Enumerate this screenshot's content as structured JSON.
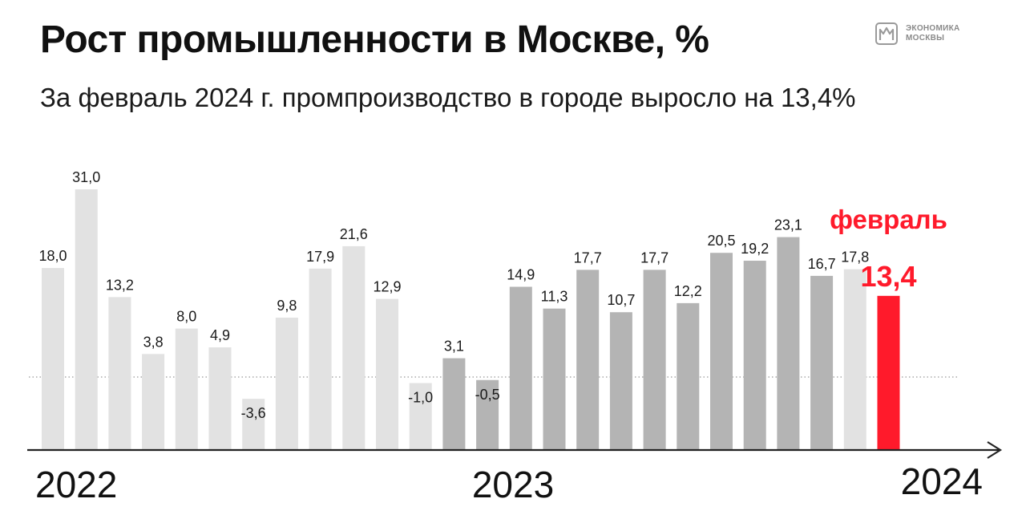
{
  "title": "Рост промышленности в Москве, %",
  "subtitle": "За февраль 2024 г. промпроизводство в городе выросло на 13,4%",
  "logo": {
    "line1": "ЭКОНОМИКА",
    "line2": "МОСКВЫ",
    "icon": "building-icon"
  },
  "colors": {
    "bar_2022": "#e2e2e2",
    "bar_2023": "#b4b4b4",
    "bar_2024": "#e2e2e2",
    "highlight": "#ff1a2b",
    "axis": "#222222",
    "zero_line": "#999999"
  },
  "chart_data": {
    "type": "bar",
    "title": "Рост промышленности в Москве, %",
    "subtitle": "За февраль 2024 г. промпроизводство в городе выросло на 13,4%",
    "xlabel": "",
    "ylabel": "",
    "grid": false,
    "ylim": [
      -6,
      34
    ],
    "values": [
      18.0,
      31.0,
      13.2,
      3.8,
      8.0,
      4.9,
      -3.6,
      9.8,
      17.9,
      21.6,
      12.9,
      -1.0,
      3.1,
      -0.5,
      14.9,
      11.3,
      17.7,
      10.7,
      17.7,
      12.2,
      20.5,
      19.2,
      23.1,
      16.7,
      17.8,
      13.4
    ],
    "labels": [
      "18,0",
      "31,0",
      "13,2",
      "3,8",
      "8,0",
      "4,9",
      "-3,6",
      "9,8",
      "17,9",
      "21,6",
      "12,9",
      "-1,0",
      "3,1",
      "-0,5",
      "14,9",
      "11,3",
      "17,7",
      "10,7",
      "17,7",
      "12,2",
      "20,5",
      "19,2",
      "23,1",
      "16,7",
      "17,8",
      "13,4"
    ],
    "years": [
      "2022",
      "2022",
      "2022",
      "2022",
      "2022",
      "2022",
      "2022",
      "2022",
      "2022",
      "2022",
      "2022",
      "2022",
      "2023",
      "2023",
      "2023",
      "2023",
      "2023",
      "2023",
      "2023",
      "2023",
      "2023",
      "2023",
      "2023",
      "2023",
      "2024",
      "2024"
    ],
    "year_labels": [
      "2022",
      "2023",
      "2024"
    ],
    "highlight": {
      "index": 25,
      "label": "февраль",
      "value_label": "13,4"
    }
  }
}
